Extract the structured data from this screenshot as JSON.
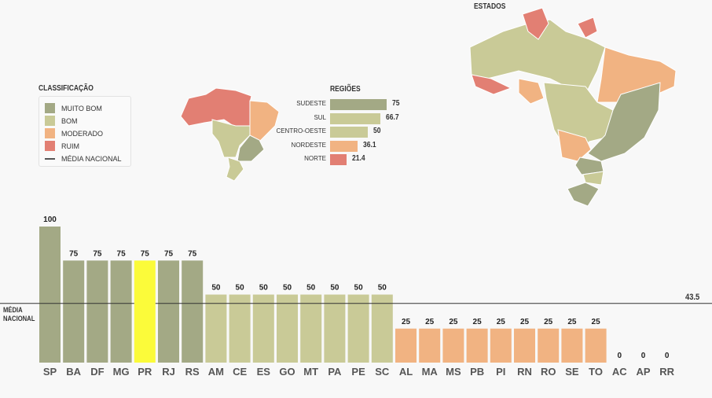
{
  "legend": {
    "title": "CLASSIFICAÇÃO",
    "items": [
      {
        "label": "MUITO BOM",
        "color": "#a3a985"
      },
      {
        "label": "BOM",
        "color": "#c9ca97"
      },
      {
        "label": "MODERADO",
        "color": "#f1b382"
      },
      {
        "label": "RUIM",
        "color": "#e27f73"
      }
    ],
    "line_label": "MÉDIA NACIONAL"
  },
  "states_map_title": "ESTADOS",
  "regions": {
    "title": "REGIÕES",
    "items": [
      {
        "label": "SUDESTE",
        "value": "75",
        "v": 75,
        "color": "#a3a985"
      },
      {
        "label": "SUL",
        "value": "66.7",
        "v": 66.7,
        "color": "#c9ca97"
      },
      {
        "label": "CENTRO-OESTE",
        "value": "50",
        "v": 50,
        "color": "#c9ca97"
      },
      {
        "label": "NORDESTE",
        "value": "36.1",
        "v": 36.1,
        "color": "#f1b382"
      },
      {
        "label": "NORTE",
        "value": "21.4",
        "v": 21.4,
        "color": "#e27f73"
      }
    ]
  },
  "chart_data": {
    "type": "bar",
    "categories": [
      "SP",
      "BA",
      "DF",
      "MG",
      "PR",
      "RJ",
      "RS",
      "AM",
      "CE",
      "ES",
      "GO",
      "MT",
      "PA",
      "PE",
      "SC",
      "AL",
      "MA",
      "MS",
      "PB",
      "PI",
      "RN",
      "RO",
      "SE",
      "TO",
      "AC",
      "AP",
      "RR"
    ],
    "values": [
      100,
      75,
      75,
      75,
      75,
      75,
      75,
      50,
      50,
      50,
      50,
      50,
      50,
      50,
      50,
      25,
      25,
      25,
      25,
      25,
      25,
      25,
      25,
      25,
      0,
      0,
      0
    ],
    "highlight": "PR",
    "highlight_color": "#fbfb3a",
    "ylim": [
      0,
      100
    ],
    "reference_line": {
      "label": "MÉDIA NACIONAL",
      "value": 43.5,
      "value_label": "43.5"
    }
  }
}
